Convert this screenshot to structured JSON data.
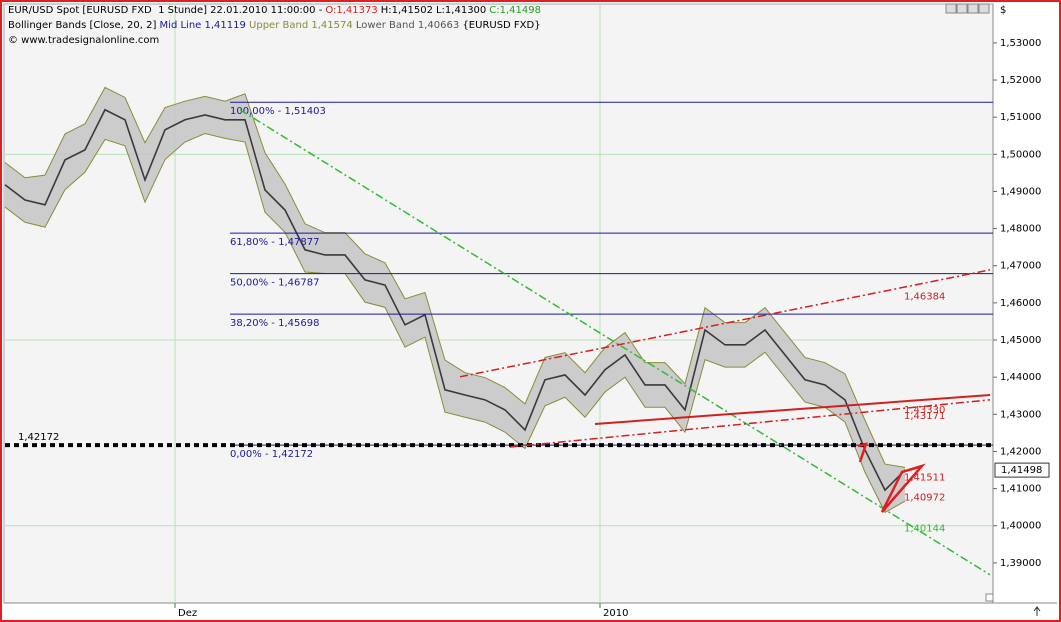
{
  "chart_data": {
    "type": "line",
    "header": {
      "instrument": "EUR/USD Spot [EURUSD FXD  1 Stunde] 22.01.2010 11:00:00 -",
      "ohlc": [
        {
          "label": "O:1,41373",
          "color": "#d02020"
        },
        {
          "label": "H:1,41502",
          "color": "#000000"
        },
        {
          "label": "L:1,41300",
          "color": "#000000"
        },
        {
          "label": "C:1,41498",
          "color": "#20a020"
        }
      ],
      "indicator": "Bollinger Bands [Close, 20, 2]",
      "mid_line": "Mid Line 1,41119",
      "upper_band": "Upper Band 1,41574",
      "lower_band": "Lower Band 1,40663",
      "feed": "{EURUSD FXD}",
      "copyright": "© www.tradesignalonline.com"
    },
    "currency": "$",
    "x": [
      0,
      1,
      2,
      3,
      4,
      5,
      6,
      7,
      8,
      9,
      10,
      11,
      12,
      13,
      14,
      15,
      16,
      17,
      18,
      19,
      20,
      21,
      22,
      23,
      24,
      25,
      26,
      27,
      28,
      29,
      30,
      31,
      32,
      33,
      34,
      35,
      36,
      37,
      38,
      39,
      40,
      41,
      42,
      43,
      44,
      45
    ],
    "xlim": [
      0,
      49.4
    ],
    "xticks": [
      {
        "value": 8.5,
        "label": "Dez"
      },
      {
        "value": 29.75,
        "label": "2010"
      }
    ],
    "ylim": [
      1.3792,
      1.5402
    ],
    "yticks": [
      {
        "value": 1.39,
        "label": "1,39000"
      },
      {
        "value": 1.4,
        "label": "1,40000"
      },
      {
        "value": 1.41,
        "label": "1,41000"
      },
      {
        "value": 1.42,
        "label": "1,42000"
      },
      {
        "value": 1.43,
        "label": "1,43000"
      },
      {
        "value": 1.44,
        "label": "1,44000"
      },
      {
        "value": 1.45,
        "label": "1,45000"
      },
      {
        "value": 1.46,
        "label": "1,46000"
      },
      {
        "value": 1.47,
        "label": "1,47000"
      },
      {
        "value": 1.48,
        "label": "1,48000"
      },
      {
        "value": 1.49,
        "label": "1,49000"
      },
      {
        "value": 1.5,
        "label": "1,50000"
      },
      {
        "value": 1.51,
        "label": "1,51000"
      },
      {
        "value": 1.52,
        "label": "1,52000"
      },
      {
        "value": 1.53,
        "label": "1,53000"
      }
    ],
    "grid_y": [
      1.4,
      1.45,
      1.5
    ],
    "series": [
      {
        "name": "Close",
        "color": "#3a3a3a",
        "values": [
          1.4918,
          1.4877,
          1.4864,
          1.4985,
          1.5012,
          1.512,
          1.5093,
          1.4931,
          1.5066,
          1.5093,
          1.5106,
          1.5093,
          1.5093,
          1.4904,
          1.485,
          1.4743,
          1.4729,
          1.4729,
          1.4662,
          1.4648,
          1.4541,
          1.4568,
          1.4366,
          1.4352,
          1.4339,
          1.4312,
          1.4258,
          1.4393,
          1.4406,
          1.4352,
          1.442,
          1.446,
          1.4379,
          1.4379,
          1.4312,
          1.4527,
          1.4487,
          1.4487,
          1.4527,
          1.446,
          1.4393,
          1.4379,
          1.4339,
          1.4204,
          1.4096,
          1.415
        ]
      },
      {
        "name": "Upper Band",
        "color": "#8b8b3a",
        "values": [
          1.4978,
          1.4937,
          1.4944,
          1.5055,
          1.5082,
          1.518,
          1.5153,
          1.5031,
          1.5126,
          1.5143,
          1.5156,
          1.5143,
          1.5163,
          1.5004,
          1.492,
          1.4813,
          1.4789,
          1.4789,
          1.4732,
          1.4708,
          1.4611,
          1.4628,
          1.4446,
          1.4412,
          1.4399,
          1.4372,
          1.4328,
          1.4453,
          1.4466,
          1.4412,
          1.448,
          1.452,
          1.4439,
          1.4439,
          1.4382,
          1.4587,
          1.4547,
          1.4547,
          1.4587,
          1.452,
          1.4453,
          1.4439,
          1.4409,
          1.4284,
          1.4166,
          1.4157
        ]
      },
      {
        "name": "Lower Band",
        "color": "#8b8b3a",
        "values": [
          1.4858,
          1.4817,
          1.4804,
          1.4905,
          1.4952,
          1.504,
          1.5023,
          1.4871,
          1.4986,
          1.5033,
          1.5056,
          1.5043,
          1.5033,
          1.4844,
          1.479,
          1.4683,
          1.4679,
          1.4679,
          1.4602,
          1.4588,
          1.4481,
          1.4508,
          1.4306,
          1.4292,
          1.4279,
          1.4252,
          1.4208,
          1.4323,
          1.4346,
          1.4292,
          1.436,
          1.44,
          1.4319,
          1.4319,
          1.4252,
          1.4447,
          1.4427,
          1.4427,
          1.4467,
          1.44,
          1.4333,
          1.4319,
          1.4279,
          1.4144,
          1.4036,
          1.4066
        ]
      }
    ],
    "band_fill": "#c4c4c4",
    "fib_start_x": 11.25,
    "fib_color": "#1a1a9a",
    "fib_levels": [
      {
        "value": 1.51403,
        "label": "100,00% - 1,51403"
      },
      {
        "value": 1.47877,
        "label": "61,80% - 1,47877"
      },
      {
        "value": 1.46787,
        "label": "50,00% - 1,46787"
      },
      {
        "value": 1.45698,
        "label": "38,20% - 1,45698"
      },
      {
        "value": 1.42172,
        "label": "0,00% - 1,42172"
      }
    ],
    "support": {
      "value": 1.42172,
      "label": "1,42172"
    },
    "trendlines": [
      {
        "x": [
          11.75,
          49.25
        ],
        "y": [
          1.512,
          1.3868
        ],
        "color": "#33bb33",
        "style": "dashdot"
      },
      {
        "x": [
          22.75,
          49.25
        ],
        "y": [
          1.4401,
          1.4689
        ],
        "color": "#d02020",
        "style": "dashdot"
      },
      {
        "x": [
          29.5,
          49.25
        ],
        "y": [
          1.4274,
          1.4352
        ],
        "color": "#d02020",
        "style": "solid"
      },
      {
        "x": [
          25.25,
          49.25
        ],
        "y": [
          1.4212,
          1.4339
        ],
        "color": "#d02020",
        "style": "dashdot"
      }
    ],
    "annotations": [
      {
        "value": 1.46384,
        "label": "1,46384",
        "color": "#d02020"
      },
      {
        "value": 1.4333,
        "label": "1,43330",
        "color": "#d02020"
      },
      {
        "value": 1.43171,
        "label": "1,43171",
        "color": "#d02020"
      },
      {
        "value": 1.41511,
        "label": "1,41511",
        "color": "#d02020"
      },
      {
        "value": 1.40972,
        "label": "1,40972",
        "color": "#d02020"
      },
      {
        "value": 1.40144,
        "label": "1,40144",
        "color": "#33bb33"
      }
    ],
    "last_price": {
      "value": 1.41498,
      "label": "1,41498"
    }
  }
}
